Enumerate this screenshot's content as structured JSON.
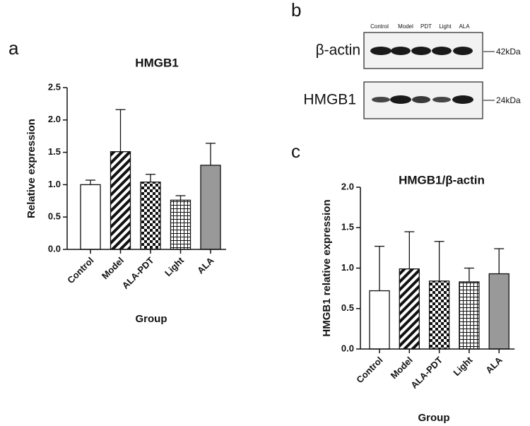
{
  "panel_labels": [
    "a",
    "b",
    "c"
  ],
  "blot": {
    "lanes": [
      "Control",
      "Model",
      "PDT",
      "Light",
      "ALA"
    ],
    "rows": [
      {
        "label": "β-actin",
        "size": "42kDa"
      },
      {
        "label": "HMGB1",
        "size": "24kDa"
      }
    ]
  },
  "chart_data": [
    {
      "type": "bar",
      "title": "HMGB1",
      "x_label": "Group",
      "y_label": "Relative expression",
      "categories": [
        "Control",
        "Model",
        "ALA-PDT",
        "Light",
        "ALA"
      ],
      "values": [
        1.0,
        1.51,
        1.04,
        0.76,
        1.3
      ],
      "errors": [
        0.07,
        0.65,
        0.12,
        0.07,
        0.34
      ],
      "colors": [
        "#ffffff",
        "#ffffff",
        "#ffffff",
        "#ffffff",
        "#999999"
      ],
      "hatches": [
        "none",
        "diagonal",
        "checker",
        "grid",
        "none"
      ],
      "ylim": [
        0,
        2.5
      ],
      "yticks": [
        {
          "value": 0,
          "label": "0.0"
        },
        0.5,
        {
          "value": 1,
          "label": "1.0"
        },
        1.5,
        {
          "value": 2,
          "label": "2.0"
        },
        2.5
      ]
    },
    {
      "type": "bar",
      "title": "HMGB1/β-actin",
      "x_label": "Group",
      "y_label": "HMGB1 relative expression",
      "categories": [
        "Control",
        "Model",
        "ALA-PDT",
        "Light",
        "ALA"
      ],
      "values": [
        0.72,
        0.99,
        0.84,
        0.83,
        0.93
      ],
      "errors": [
        0.55,
        0.46,
        0.49,
        0.17,
        0.31
      ],
      "colors": [
        "#ffffff",
        "#ffffff",
        "#ffffff",
        "#ffffff",
        "#999999"
      ],
      "hatches": [
        "none",
        "diagonal",
        "checker",
        "grid",
        "none"
      ],
      "ylim": [
        0,
        2
      ],
      "yticks": [
        {
          "value": 0,
          "label": "0.0"
        },
        0.5,
        {
          "value": 1,
          "label": "1.0"
        },
        1.5,
        {
          "value": 2,
          "label": "2.0"
        }
      ]
    }
  ]
}
